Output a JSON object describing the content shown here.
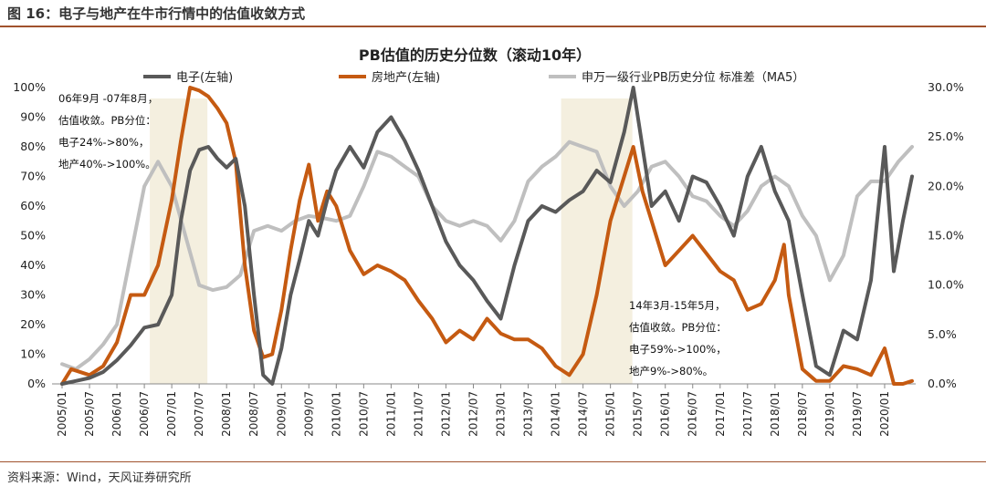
{
  "figure": {
    "label": "图 16：电子与地产在牛市行情中的估值收敛方式",
    "source": "资料来源：Wind，天风证券研究所"
  },
  "colors": {
    "electronics": "#595959",
    "real_estate": "#c55a11",
    "stddev": "#bfbfbf",
    "highlight": "#f4efdf",
    "header_rule": "#a0522d"
  },
  "chart_data": {
    "type": "line",
    "title": "PB估值的历史分位数（滚动10年）",
    "legend_position": "top",
    "grid": false,
    "x_tick_labels": [
      "2005/01",
      "2005/07",
      "2006/01",
      "2006/07",
      "2007/01",
      "2007/07",
      "2008/01",
      "2008/07",
      "2009/01",
      "2009/07",
      "2010/01",
      "2010/07",
      "2011/01",
      "2011/07",
      "2012/01",
      "2012/07",
      "2013/01",
      "2013/07",
      "2014/01",
      "2014/07",
      "2015/01",
      "2015/07",
      "2016/01",
      "2016/07",
      "2017/01",
      "2017/07",
      "2018/01",
      "2018/07",
      "2019/01",
      "2019/07",
      "2020/01"
    ],
    "y_left": {
      "min": 0,
      "max": 100,
      "ticks": [
        "0%",
        "10%",
        "20%",
        "30%",
        "40%",
        "50%",
        "60%",
        "70%",
        "80%",
        "90%",
        "100%"
      ]
    },
    "y_right": {
      "min": 0,
      "max": 30,
      "ticks": [
        "0.0%",
        "5.0%",
        "10.0%",
        "15.0%",
        "20.0%",
        "25.0%",
        "30.0%"
      ]
    },
    "shaded_periods": [
      {
        "start": "2006/09",
        "end": "2007/08"
      },
      {
        "start": "2014/03",
        "end": "2015/05"
      }
    ],
    "series": [
      {
        "name": "电子(左轴)",
        "axis": "left",
        "color_key": "electronics",
        "points": [
          [
            "2005/01",
            0
          ],
          [
            "2005/04",
            1
          ],
          [
            "2005/07",
            2
          ],
          [
            "2005/10",
            4
          ],
          [
            "2006/01",
            8
          ],
          [
            "2006/04",
            13
          ],
          [
            "2006/07",
            19
          ],
          [
            "2006/10",
            20
          ],
          [
            "2007/01",
            30
          ],
          [
            "2007/03",
            55
          ],
          [
            "2007/05",
            72
          ],
          [
            "2007/07",
            79
          ],
          [
            "2007/09",
            80
          ],
          [
            "2007/11",
            76
          ],
          [
            "2008/01",
            73
          ],
          [
            "2008/03",
            76
          ],
          [
            "2008/05",
            60
          ],
          [
            "2008/07",
            30
          ],
          [
            "2008/09",
            3
          ],
          [
            "2008/11",
            0
          ],
          [
            "2009/01",
            12
          ],
          [
            "2009/03",
            30
          ],
          [
            "2009/05",
            42
          ],
          [
            "2009/07",
            55
          ],
          [
            "2009/09",
            50
          ],
          [
            "2009/11",
            62
          ],
          [
            "2010/01",
            72
          ],
          [
            "2010/04",
            80
          ],
          [
            "2010/07",
            73
          ],
          [
            "2010/10",
            85
          ],
          [
            "2011/01",
            90
          ],
          [
            "2011/04",
            82
          ],
          [
            "2011/07",
            72
          ],
          [
            "2011/10",
            60
          ],
          [
            "2012/01",
            48
          ],
          [
            "2012/04",
            40
          ],
          [
            "2012/07",
            35
          ],
          [
            "2012/10",
            28
          ],
          [
            "2013/01",
            22
          ],
          [
            "2013/04",
            40
          ],
          [
            "2013/07",
            55
          ],
          [
            "2013/10",
            60
          ],
          [
            "2014/01",
            58
          ],
          [
            "2014/04",
            62
          ],
          [
            "2014/07",
            65
          ],
          [
            "2014/10",
            72
          ],
          [
            "2015/01",
            68
          ],
          [
            "2015/04",
            85
          ],
          [
            "2015/06",
            100
          ],
          [
            "2015/08",
            80
          ],
          [
            "2015/10",
            60
          ],
          [
            "2016/01",
            65
          ],
          [
            "2016/04",
            55
          ],
          [
            "2016/07",
            70
          ],
          [
            "2016/10",
            68
          ],
          [
            "2017/01",
            60
          ],
          [
            "2017/04",
            50
          ],
          [
            "2017/07",
            70
          ],
          [
            "2017/10",
            80
          ],
          [
            "2018/01",
            65
          ],
          [
            "2018/04",
            55
          ],
          [
            "2018/07",
            30
          ],
          [
            "2018/10",
            6
          ],
          [
            "2019/01",
            3
          ],
          [
            "2019/04",
            18
          ],
          [
            "2019/07",
            15
          ],
          [
            "2019/10",
            35
          ],
          [
            "2020/01",
            80
          ],
          [
            "2020/03",
            38
          ],
          [
            "2020/05",
            55
          ],
          [
            "2020/07",
            70
          ]
        ]
      },
      {
        "name": "房地产(左轴)",
        "axis": "left",
        "color_key": "real_estate",
        "points": [
          [
            "2005/01",
            0
          ],
          [
            "2005/03",
            5
          ],
          [
            "2005/07",
            3
          ],
          [
            "2005/10",
            6
          ],
          [
            "2006/01",
            14
          ],
          [
            "2006/04",
            30
          ],
          [
            "2006/07",
            30
          ],
          [
            "2006/10",
            40
          ],
          [
            "2007/01",
            62
          ],
          [
            "2007/03",
            82
          ],
          [
            "2007/05",
            100
          ],
          [
            "2007/07",
            99
          ],
          [
            "2007/09",
            97
          ],
          [
            "2007/11",
            93
          ],
          [
            "2008/01",
            88
          ],
          [
            "2008/03",
            75
          ],
          [
            "2008/05",
            40
          ],
          [
            "2008/07",
            18
          ],
          [
            "2008/09",
            9
          ],
          [
            "2008/11",
            10
          ],
          [
            "2009/01",
            25
          ],
          [
            "2009/03",
            45
          ],
          [
            "2009/05",
            62
          ],
          [
            "2009/07",
            74
          ],
          [
            "2009/09",
            55
          ],
          [
            "2009/11",
            65
          ],
          [
            "2010/01",
            60
          ],
          [
            "2010/04",
            45
          ],
          [
            "2010/07",
            37
          ],
          [
            "2010/10",
            40
          ],
          [
            "2011/01",
            38
          ],
          [
            "2011/04",
            35
          ],
          [
            "2011/07",
            28
          ],
          [
            "2011/10",
            22
          ],
          [
            "2012/01",
            14
          ],
          [
            "2012/04",
            18
          ],
          [
            "2012/07",
            15
          ],
          [
            "2012/10",
            22
          ],
          [
            "2013/01",
            17
          ],
          [
            "2013/04",
            15
          ],
          [
            "2013/07",
            15
          ],
          [
            "2013/10",
            12
          ],
          [
            "2014/01",
            6
          ],
          [
            "2014/04",
            3
          ],
          [
            "2014/07",
            10
          ],
          [
            "2014/10",
            30
          ],
          [
            "2015/01",
            55
          ],
          [
            "2015/04",
            70
          ],
          [
            "2015/06",
            80
          ],
          [
            "2015/08",
            65
          ],
          [
            "2015/10",
            55
          ],
          [
            "2016/01",
            40
          ],
          [
            "2016/04",
            45
          ],
          [
            "2016/07",
            50
          ],
          [
            "2016/10",
            44
          ],
          [
            "2017/01",
            38
          ],
          [
            "2017/04",
            35
          ],
          [
            "2017/07",
            25
          ],
          [
            "2017/10",
            27
          ],
          [
            "2018/01",
            35
          ],
          [
            "2018/03",
            47
          ],
          [
            "2018/04",
            30
          ],
          [
            "2018/07",
            5
          ],
          [
            "2018/10",
            1
          ],
          [
            "2019/01",
            1
          ],
          [
            "2019/04",
            6
          ],
          [
            "2019/07",
            5
          ],
          [
            "2019/10",
            3
          ],
          [
            "2020/01",
            12
          ],
          [
            "2020/03",
            0
          ],
          [
            "2020/05",
            0
          ],
          [
            "2020/07",
            1
          ]
        ]
      },
      {
        "name": "申万一级行业PB历史分位 标准差（MA5）",
        "axis": "right",
        "color_key": "stddev",
        "points": [
          [
            "2005/01",
            2.0
          ],
          [
            "2005/04",
            1.5
          ],
          [
            "2005/07",
            2.5
          ],
          [
            "2005/10",
            4.0
          ],
          [
            "2006/01",
            6.0
          ],
          [
            "2006/04",
            13.0
          ],
          [
            "2006/07",
            20.0
          ],
          [
            "2006/10",
            22.5
          ],
          [
            "2007/01",
            20.0
          ],
          [
            "2007/04",
            15.0
          ],
          [
            "2007/07",
            10.0
          ],
          [
            "2007/10",
            9.5
          ],
          [
            "2008/01",
            9.8
          ],
          [
            "2008/04",
            11.0
          ],
          [
            "2008/07",
            15.5
          ],
          [
            "2008/10",
            16.0
          ],
          [
            "2009/01",
            15.5
          ],
          [
            "2009/04",
            16.5
          ],
          [
            "2009/07",
            17.0
          ],
          [
            "2009/10",
            16.8
          ],
          [
            "2010/01",
            16.5
          ],
          [
            "2010/04",
            17.0
          ],
          [
            "2010/07",
            20.0
          ],
          [
            "2010/10",
            23.5
          ],
          [
            "2011/01",
            23.0
          ],
          [
            "2011/04",
            22.0
          ],
          [
            "2011/07",
            21.0
          ],
          [
            "2011/10",
            18.0
          ],
          [
            "2012/01",
            16.5
          ],
          [
            "2012/04",
            16.0
          ],
          [
            "2012/07",
            16.5
          ],
          [
            "2012/10",
            16.0
          ],
          [
            "2013/01",
            14.5
          ],
          [
            "2013/04",
            16.5
          ],
          [
            "2013/07",
            20.5
          ],
          [
            "2013/10",
            22.0
          ],
          [
            "2014/01",
            23.0
          ],
          [
            "2014/04",
            24.5
          ],
          [
            "2014/07",
            24.0
          ],
          [
            "2014/10",
            23.5
          ],
          [
            "2015/01",
            20.0
          ],
          [
            "2015/04",
            18.0
          ],
          [
            "2015/07",
            19.5
          ],
          [
            "2015/10",
            22.0
          ],
          [
            "2016/01",
            22.5
          ],
          [
            "2016/04",
            21.0
          ],
          [
            "2016/07",
            19.0
          ],
          [
            "2016/10",
            18.5
          ],
          [
            "2017/01",
            17.0
          ],
          [
            "2017/04",
            16.0
          ],
          [
            "2017/07",
            17.5
          ],
          [
            "2017/10",
            20.0
          ],
          [
            "2018/01",
            21.0
          ],
          [
            "2018/04",
            20.0
          ],
          [
            "2018/07",
            17.0
          ],
          [
            "2018/10",
            15.0
          ],
          [
            "2019/01",
            10.5
          ],
          [
            "2019/04",
            13.0
          ],
          [
            "2019/07",
            19.0
          ],
          [
            "2019/10",
            20.5
          ],
          [
            "2020/01",
            20.5
          ],
          [
            "2020/04",
            22.5
          ],
          [
            "2020/07",
            24.0
          ]
        ]
      }
    ],
    "annotations": [
      {
        "id": "a1",
        "lines": [
          "06年9月 -07年8月，",
          "估值收敛。PB分位：",
          "电子24%->80%，",
          "地产40%->100%。"
        ]
      },
      {
        "id": "a2",
        "lines": [
          "14年3月-15年5月，",
          "估值收敛。PB分位：",
          "电子59%->100%，",
          "地产9%->80%。"
        ]
      }
    ]
  }
}
